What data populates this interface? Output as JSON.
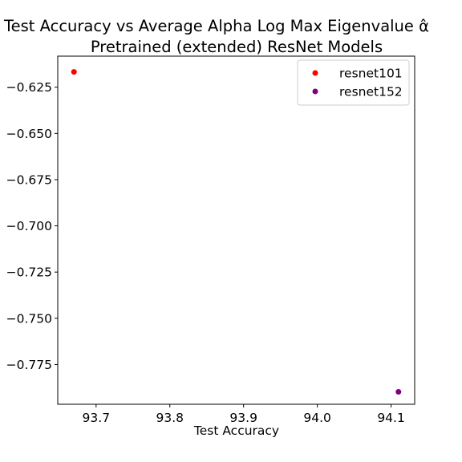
{
  "chart_data": {
    "type": "scatter",
    "title_line1": "Test Accuracy vs Average Alpha Log Max Eigenvalue",
    "title_symbol": "α̂",
    "title_line2": "Pretrained (extended) ResNet Models",
    "xlabel": "Test Accuracy",
    "ylabel": "",
    "xlim": [
      93.648,
      94.132
    ],
    "ylim": [
      -0.7965,
      -0.6082
    ],
    "xticks": [
      93.7,
      93.8,
      93.9,
      94.0,
      94.1
    ],
    "xtick_labels": [
      "93.7",
      "93.8",
      "93.9",
      "94.0",
      "94.1"
    ],
    "yticks": [
      -0.625,
      -0.65,
      -0.675,
      -0.7,
      -0.725,
      -0.75,
      -0.775
    ],
    "ytick_labels": [
      "−0.625",
      "−0.650",
      "−0.675",
      "−0.700",
      "−0.725",
      "−0.750",
      "−0.775"
    ],
    "grid": false,
    "legend_position": "top-right",
    "series": [
      {
        "name": "resnet101",
        "color": "#ff0000",
        "points": [
          {
            "x": 93.67,
            "y": -0.6167
          }
        ]
      },
      {
        "name": "resnet152",
        "color": "#800080",
        "points": [
          {
            "x": 94.11,
            "y": -0.7898
          }
        ]
      }
    ]
  }
}
